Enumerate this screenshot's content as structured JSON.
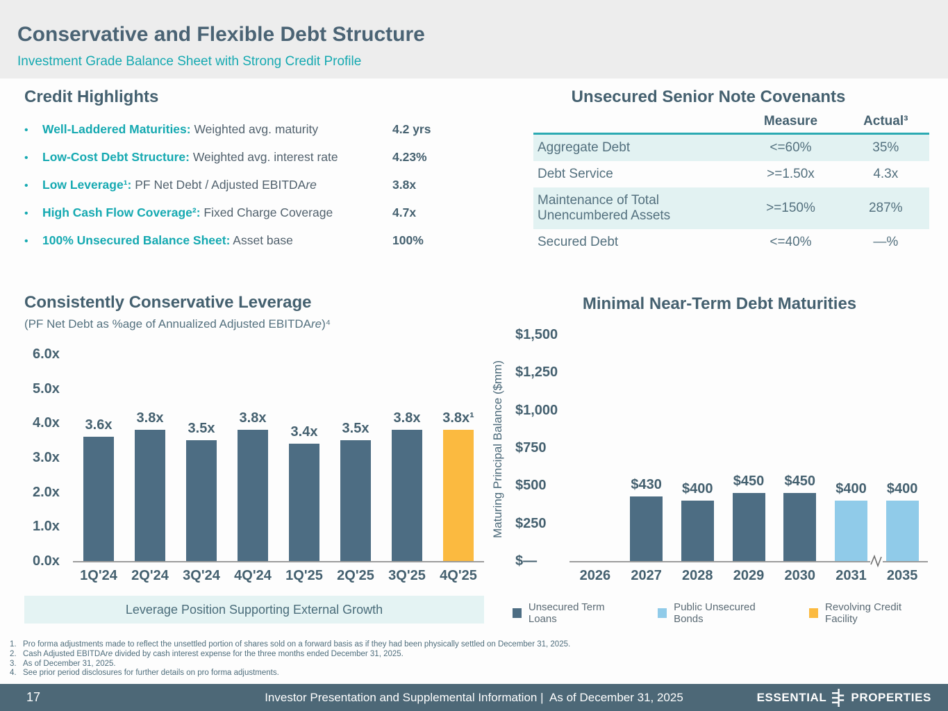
{
  "slide": {
    "title": "Conservative and Flexible Debt Structure",
    "subtitle": "Investment Grade Balance Sheet with Strong Credit Profile"
  },
  "colors": {
    "teal_accent": "#15A9B1",
    "slate_heading": "#44606F",
    "bar_dark": "#4D6D83",
    "bar_light_blue": "#90CBE9",
    "bar_yellow": "#FBBA40",
    "table_stripe": "#E2F2F2",
    "banner_bg": "#E4F3F3",
    "footer_bg": "#4D6877",
    "header_band_bg": "#EDEDED"
  },
  "credit_highlights": {
    "heading": "Credit Highlights",
    "bullets": [
      {
        "lead": "Well-Laddered Maturities:",
        "text": " Weighted avg. maturity",
        "value": "4.2 yrs"
      },
      {
        "lead": "Low-Cost Debt Structure:",
        "text": " Weighted avg. interest rate",
        "value": "4.23%"
      },
      {
        "lead": "Low Leverage¹:",
        "text": " PF Net Debt / Adjusted EBITDA",
        "text_italic": "re",
        "value": "3.8x"
      },
      {
        "lead": "High Cash Flow Coverage²:",
        "text": " Fixed Charge Coverage",
        "value": "4.7x"
      },
      {
        "lead": "100% Unsecured Balance Sheet:",
        "text": " Asset base",
        "value": "100%"
      }
    ]
  },
  "covenants": {
    "heading": "Unsecured Senior Note Covenants",
    "columns": {
      "measure": "Measure",
      "actual": "Actual³"
    },
    "rows": [
      {
        "label": "Aggregate Debt",
        "measure": "<=60%",
        "actual": "35%"
      },
      {
        "label": "Debt Service",
        "measure": ">=1.50x",
        "actual": "4.3x"
      },
      {
        "label": "Maintenance of Total Unencumbered Assets",
        "measure": ">=150%",
        "actual": "287%"
      },
      {
        "label": "Secured Debt",
        "measure": "<=40%",
        "actual": "—%"
      }
    ]
  },
  "chart_data": [
    {
      "type": "bar",
      "title": "Consistently Conservative Leverage",
      "subtitle_pre": "(PF Net Debt as %age of Annualized Adjusted EBITDA",
      "subtitle_italic": "re",
      "subtitle_post": ")⁴",
      "categories": [
        "1Q'24",
        "2Q'24",
        "3Q'24",
        "4Q'24",
        "1Q'25",
        "2Q'25",
        "3Q'25",
        "4Q'25"
      ],
      "values": [
        3.6,
        3.8,
        3.5,
        3.8,
        3.4,
        3.5,
        3.8,
        3.8
      ],
      "bar_labels": [
        "3.6x",
        "3.8x",
        "3.5x",
        "3.8x",
        "3.4x",
        "3.5x",
        "3.8x",
        "3.8x¹"
      ],
      "colors": [
        "#4D6D83",
        "#4D6D83",
        "#4D6D83",
        "#4D6D83",
        "#4D6D83",
        "#4D6D83",
        "#4D6D83",
        "#FBBA40"
      ],
      "ylim": [
        0,
        6
      ],
      "yticks": [
        {
          "label": "6.0x",
          "value": 6
        },
        {
          "label": "5.0x",
          "value": 5
        },
        {
          "label": "4.0x",
          "value": 4
        },
        {
          "label": "3.0x",
          "value": 3
        },
        {
          "label": "2.0x",
          "value": 2
        },
        {
          "label": "1.0x",
          "value": 1
        },
        {
          "label": "0.0x",
          "value": 0
        }
      ],
      "grid": false,
      "caption": "Leverage Position Supporting External Growth"
    },
    {
      "type": "bar",
      "title": "Minimal Near-Term Debt Maturities",
      "ylabel": "Maturing Principal Balance ($mm)",
      "categories": [
        "2026",
        "2027",
        "2028",
        "2029",
        "2030",
        "2031",
        "2035"
      ],
      "values": [
        0,
        430,
        400,
        450,
        450,
        400,
        400
      ],
      "bar_labels": [
        "",
        "$430",
        "$400",
        "$450",
        "$450",
        "$400",
        "$400"
      ],
      "colors": [
        "#4D6D83",
        "#4D6D83",
        "#4D6D83",
        "#4D6D83",
        "#4D6D83",
        "#90CBE9",
        "#90CBE9"
      ],
      "ylim": [
        0,
        1500
      ],
      "yticks": [
        {
          "label": "$1,500",
          "value": 1500
        },
        {
          "label": "$1,250",
          "value": 1250
        },
        {
          "label": "$1,000",
          "value": 1000
        },
        {
          "label": "$750",
          "value": 750
        },
        {
          "label": "$500",
          "value": 500
        },
        {
          "label": "$250",
          "value": 250
        },
        {
          "label": "$—",
          "value": 0
        }
      ],
      "grid": false,
      "axis_break_after_category": "2031",
      "legend_position": "bottom",
      "legend": [
        {
          "label": "Unsecured Term Loans",
          "color": "#4D6D83"
        },
        {
          "label": "Public Unsecured Bonds",
          "color": "#90CBE9"
        },
        {
          "label": "Revolving Credit Facility",
          "color": "#FBBA40"
        }
      ]
    }
  ],
  "footnotes": [
    {
      "num": "1.",
      "text": "Pro forma adjustments made to reflect the unsettled portion of shares sold on a forward basis as if they had been physically settled on December 31, 2025."
    },
    {
      "num": "2.",
      "pre": "Cash Adjusted EBITDA",
      "italic": "re",
      "post": " divided by cash interest expense for the three months ended December 31, 2025."
    },
    {
      "num": "3.",
      "text": "As of December 31, 2025."
    },
    {
      "num": "4.",
      "text": "See prior period disclosures for further details on pro forma adjustments."
    }
  ],
  "footer": {
    "page": "17",
    "center": "Investor Presentation and Supplemental Information |  As of December 31, 2025",
    "logo_left": "ESSENTIAL",
    "logo_right": "PROPERTIES"
  }
}
